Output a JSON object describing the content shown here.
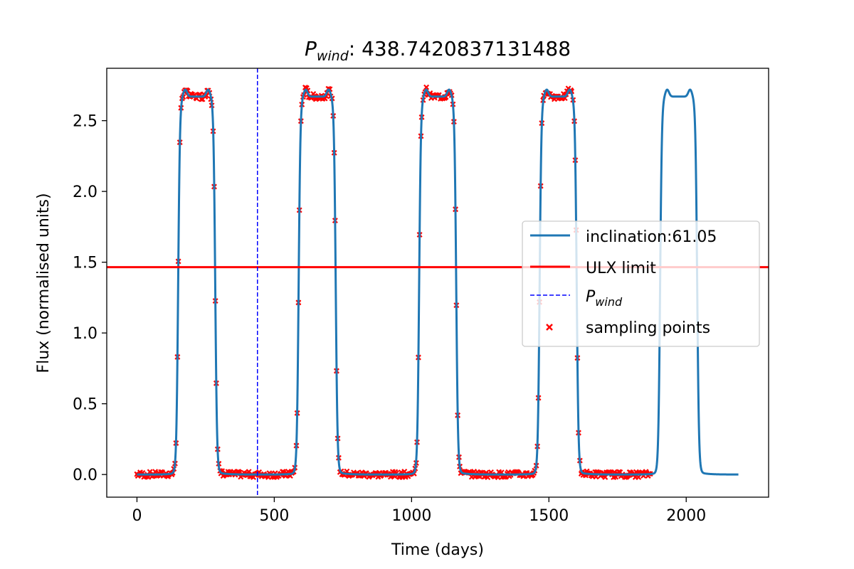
{
  "chart_data": {
    "type": "line",
    "title_main": "P",
    "title_sub": "wind",
    "title_value": ": 438.7420837131488",
    "xlabel": "Time (days)",
    "ylabel": "Flux (normalised units)",
    "xlim": [
      -110,
      2300
    ],
    "ylim": [
      -0.16,
      2.87
    ],
    "xticks": [
      0,
      500,
      1000,
      1500,
      2000
    ],
    "yticks": [
      0.0,
      0.5,
      1.0,
      1.5,
      2.0,
      2.5
    ],
    "xtick_labels": [
      "0",
      "500",
      "1000",
      "1500",
      "2000"
    ],
    "ytick_labels": [
      "0.0",
      "0.5",
      "1.0",
      "1.5",
      "2.0",
      "2.5"
    ],
    "series": [
      {
        "name": "inclination:61.05",
        "kind": "line",
        "color": "#1f77b4",
        "model": {
          "period_days": 438.742,
          "x_start": 0,
          "x_end": 2190,
          "rise_center_offset": 150,
          "fall_center_offset": 285,
          "low_level": 0.0,
          "plateau_level": 2.67,
          "plateau_horns": 0.05
        }
      },
      {
        "name": "ULX limit",
        "kind": "hline",
        "color": "#ff0000",
        "y": 1.465
      },
      {
        "name": "P",
        "name_sub": "wind",
        "kind": "vline",
        "color": "#0000ff",
        "style": "dashed",
        "x": 438.742
      },
      {
        "name": "sampling points",
        "kind": "scatter",
        "marker": "x",
        "color": "#ff0000",
        "x_range": [
          0,
          1870
        ],
        "y_scatter": 0.04
      }
    ],
    "legend_position": "center-right",
    "grid": false
  }
}
